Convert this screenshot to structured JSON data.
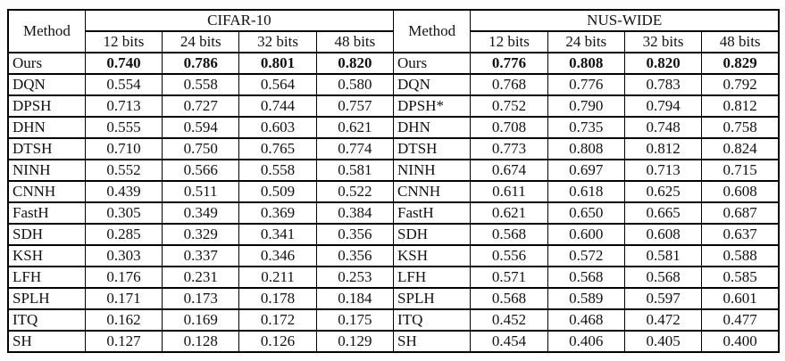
{
  "table": {
    "method_header": "Method",
    "bits_headers": [
      "12 bits",
      "24 bits",
      "32 bits",
      "48 bits"
    ],
    "colors": {
      "border": "#000000",
      "text": "#111111",
      "background": "#ffffff"
    },
    "left": {
      "dataset": "CIFAR-10",
      "rows": [
        {
          "method": "Ours",
          "bold": true,
          "values": [
            "0.740",
            "0.786",
            "0.801",
            "0.820"
          ]
        },
        {
          "method": "DQN",
          "bold": false,
          "values": [
            "0.554",
            "0.558",
            "0.564",
            "0.580"
          ]
        },
        {
          "method": "DPSH",
          "bold": false,
          "values": [
            "0.713",
            "0.727",
            "0.744",
            "0.757"
          ]
        },
        {
          "method": "DHN",
          "bold": false,
          "values": [
            "0.555",
            "0.594",
            "0.603",
            "0.621"
          ]
        },
        {
          "method": "DTSH",
          "bold": false,
          "values": [
            "0.710",
            "0.750",
            "0.765",
            "0.774"
          ]
        },
        {
          "method": "NINH",
          "bold": false,
          "values": [
            "0.552",
            "0.566",
            "0.558",
            "0.581"
          ]
        },
        {
          "method": "CNNH",
          "bold": false,
          "values": [
            "0.439",
            "0.511",
            "0.509",
            "0.522"
          ]
        },
        {
          "method": "FastH",
          "bold": false,
          "values": [
            "0.305",
            "0.349",
            "0.369",
            "0.384"
          ]
        },
        {
          "method": "SDH",
          "bold": false,
          "values": [
            "0.285",
            "0.329",
            "0.341",
            "0.356"
          ]
        },
        {
          "method": "KSH",
          "bold": false,
          "values": [
            "0.303",
            "0.337",
            "0.346",
            "0.356"
          ]
        },
        {
          "method": "LFH",
          "bold": false,
          "values": [
            "0.176",
            "0.231",
            "0.211",
            "0.253"
          ]
        },
        {
          "method": "SPLH",
          "bold": false,
          "values": [
            "0.171",
            "0.173",
            "0.178",
            "0.184"
          ]
        },
        {
          "method": "ITQ",
          "bold": false,
          "values": [
            "0.162",
            "0.169",
            "0.172",
            "0.175"
          ]
        },
        {
          "method": "SH",
          "bold": false,
          "values": [
            "0.127",
            "0.128",
            "0.126",
            "0.129"
          ]
        }
      ]
    },
    "right": {
      "dataset": "NUS-WIDE",
      "rows": [
        {
          "method": "Ours",
          "bold": true,
          "values": [
            "0.776",
            "0.808",
            "0.820",
            "0.829"
          ]
        },
        {
          "method": "DQN",
          "bold": false,
          "values": [
            "0.768",
            "0.776",
            "0.783",
            "0.792"
          ]
        },
        {
          "method": "DPSH*",
          "bold": false,
          "values": [
            "0.752",
            "0.790",
            "0.794",
            "0.812"
          ]
        },
        {
          "method": "DHN",
          "bold": false,
          "values": [
            "0.708",
            "0.735",
            "0.748",
            "0.758"
          ]
        },
        {
          "method": "DTSH",
          "bold": false,
          "values": [
            "0.773",
            "0.808",
            "0.812",
            "0.824"
          ]
        },
        {
          "method": "NINH",
          "bold": false,
          "values": [
            "0.674",
            "0.697",
            "0.713",
            "0.715"
          ]
        },
        {
          "method": "CNNH",
          "bold": false,
          "values": [
            "0.611",
            "0.618",
            "0.625",
            "0.608"
          ]
        },
        {
          "method": "FastH",
          "bold": false,
          "values": [
            "0.621",
            "0.650",
            "0.665",
            "0.687"
          ]
        },
        {
          "method": "SDH",
          "bold": false,
          "values": [
            "0.568",
            "0.600",
            "0.608",
            "0.637"
          ]
        },
        {
          "method": "KSH",
          "bold": false,
          "values": [
            "0.556",
            "0.572",
            "0.581",
            "0.588"
          ]
        },
        {
          "method": "LFH",
          "bold": false,
          "values": [
            "0.571",
            "0.568",
            "0.568",
            "0.585"
          ]
        },
        {
          "method": "SPLH",
          "bold": false,
          "values": [
            "0.568",
            "0.589",
            "0.597",
            "0.601"
          ]
        },
        {
          "method": "ITQ",
          "bold": false,
          "values": [
            "0.452",
            "0.468",
            "0.472",
            "0.477"
          ]
        },
        {
          "method": "SH",
          "bold": false,
          "values": [
            "0.454",
            "0.406",
            "0.405",
            "0.400"
          ]
        }
      ]
    }
  }
}
